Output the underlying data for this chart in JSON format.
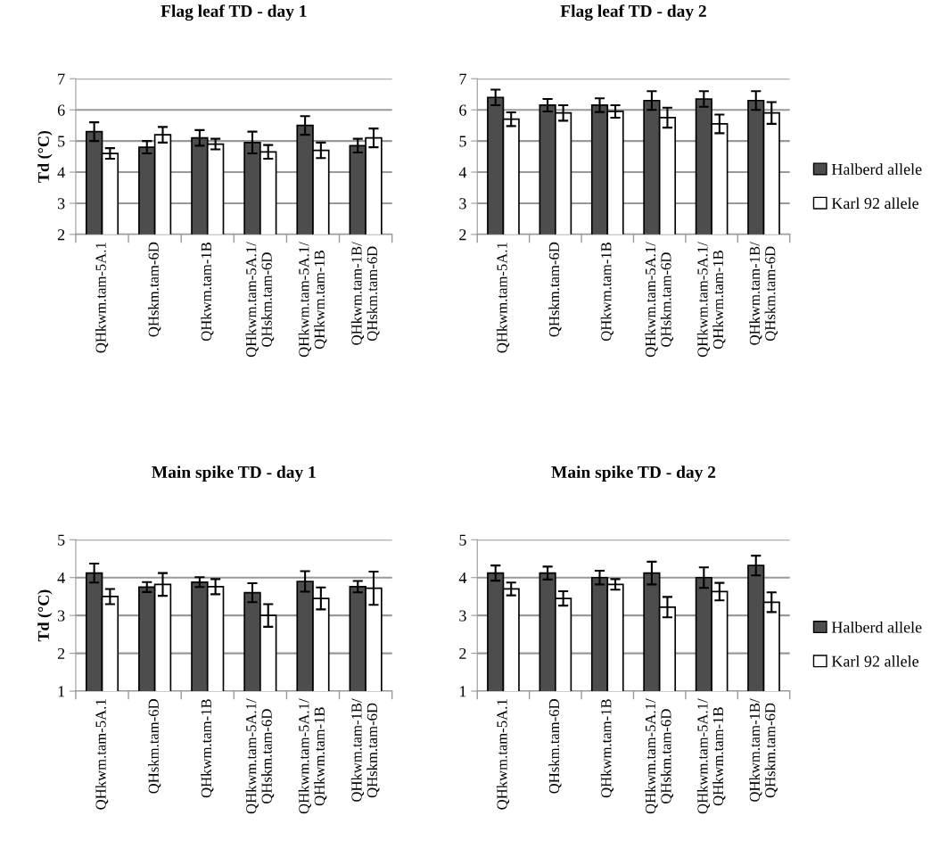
{
  "chart_data": [
    {
      "type": "bar",
      "title": "Flag leaf TD - day 1",
      "ylabel": "Td (°C)",
      "categories": [
        "QHkwm.tam-5A.1",
        "QHskm.tam-6D",
        "QHkwm.tam-1B",
        "QHkwm.tam-5A.1/\nQHskm.tam-6D",
        "QHkwm.tam-5A.1/\nQHkwm.tam-1B",
        "QHkwm.tam-1B/\nQHskm.tam-6D"
      ],
      "ylim": [
        2,
        7
      ],
      "yticks": [
        2,
        3,
        4,
        5,
        6,
        7
      ],
      "grid": "y",
      "legend": false,
      "series": [
        {
          "color": "#4d4d4d",
          "values": [
            5.3,
            4.8,
            5.1,
            4.95,
            5.5,
            4.85
          ],
          "errors": [
            0.3,
            0.2,
            0.25,
            0.35,
            0.3,
            0.22
          ]
        },
        {
          "color": "#ffffff",
          "values": [
            4.6,
            5.2,
            4.9,
            4.65,
            4.7,
            5.1
          ],
          "errors": [
            0.17,
            0.25,
            0.17,
            0.22,
            0.25,
            0.3
          ]
        }
      ]
    },
    {
      "type": "bar",
      "title": "Flag leaf TD - day 2",
      "categories": [
        "QHkwm.tam-5A.1",
        "QHskm.tam-6D",
        "QHkwm.tam-1B",
        "QHkwm.tam-5A.1/\nQHskm.tam-6D",
        "QHkwm.tam-5A.1/\nQHkwm.tam-1B",
        "QHkwm.tam-1B/\nQHskm.tam-6D"
      ],
      "ylim": [
        2,
        7
      ],
      "yticks": [
        2,
        3,
        4,
        5,
        6,
        7
      ],
      "grid": "y",
      "legend": "right",
      "series": [
        {
          "name": "Halberd allele",
          "color": "#4d4d4d",
          "values": [
            6.4,
            6.15,
            6.15,
            6.3,
            6.35,
            6.3
          ],
          "errors": [
            0.25,
            0.2,
            0.22,
            0.3,
            0.25,
            0.3
          ]
        },
        {
          "name": "Karl 92 allele",
          "color": "#ffffff",
          "values": [
            5.7,
            5.9,
            5.95,
            5.75,
            5.55,
            5.9
          ],
          "errors": [
            0.22,
            0.25,
            0.2,
            0.32,
            0.3,
            0.35
          ]
        }
      ]
    },
    {
      "type": "bar",
      "title": "Main spike TD - day 1",
      "ylabel": "Td (°C)",
      "categories": [
        "QHkwm.tam-5A.1",
        "QHskm.tam-6D",
        "QHkwm.tam-1B",
        "QHkwm.tam-5A.1/\nQHskm.tam-6D",
        "QHkwm.tam-5A.1/\nQHkwm.tam-1B",
        "QHkwm.tam-1B/\nQHskm.tam-6D"
      ],
      "ylim": [
        1,
        5
      ],
      "yticks": [
        1,
        2,
        3,
        4,
        5
      ],
      "grid": "y",
      "legend": false,
      "series": [
        {
          "color": "#4d4d4d",
          "values": [
            4.12,
            3.75,
            3.88,
            3.6,
            3.9,
            3.76
          ],
          "errors": [
            0.25,
            0.13,
            0.13,
            0.25,
            0.27,
            0.15
          ]
        },
        {
          "color": "#ffffff",
          "values": [
            3.5,
            3.82,
            3.76,
            3.0,
            3.45,
            3.72
          ],
          "errors": [
            0.2,
            0.3,
            0.2,
            0.3,
            0.29,
            0.44
          ]
        }
      ]
    },
    {
      "type": "bar",
      "title": "Main spike TD - day 2",
      "categories": [
        "QHkwm.tam-5A.1",
        "QHskm.tam-6D",
        "QHkwm.tam-1B",
        "QHkwm.tam-5A.1/\nQHskm.tam-6D",
        "QHkwm.tam-5A.1/\nQHkwm.tam-1B",
        "QHkwm.tam-1B/\nQHskm.tam-6D"
      ],
      "ylim": [
        1,
        5
      ],
      "yticks": [
        1,
        2,
        3,
        4,
        5
      ],
      "grid": "y",
      "legend": "right",
      "series": [
        {
          "name": "Halberd allele",
          "color": "#4d4d4d",
          "values": [
            4.12,
            4.12,
            4.0,
            4.12,
            4.0,
            4.32
          ],
          "errors": [
            0.2,
            0.17,
            0.18,
            0.3,
            0.27,
            0.26
          ]
        },
        {
          "name": "Karl 92 allele",
          "color": "#ffffff",
          "values": [
            3.7,
            3.45,
            3.82,
            3.22,
            3.63,
            3.35
          ],
          "errors": [
            0.17,
            0.19,
            0.14,
            0.27,
            0.23,
            0.26
          ]
        }
      ]
    }
  ]
}
